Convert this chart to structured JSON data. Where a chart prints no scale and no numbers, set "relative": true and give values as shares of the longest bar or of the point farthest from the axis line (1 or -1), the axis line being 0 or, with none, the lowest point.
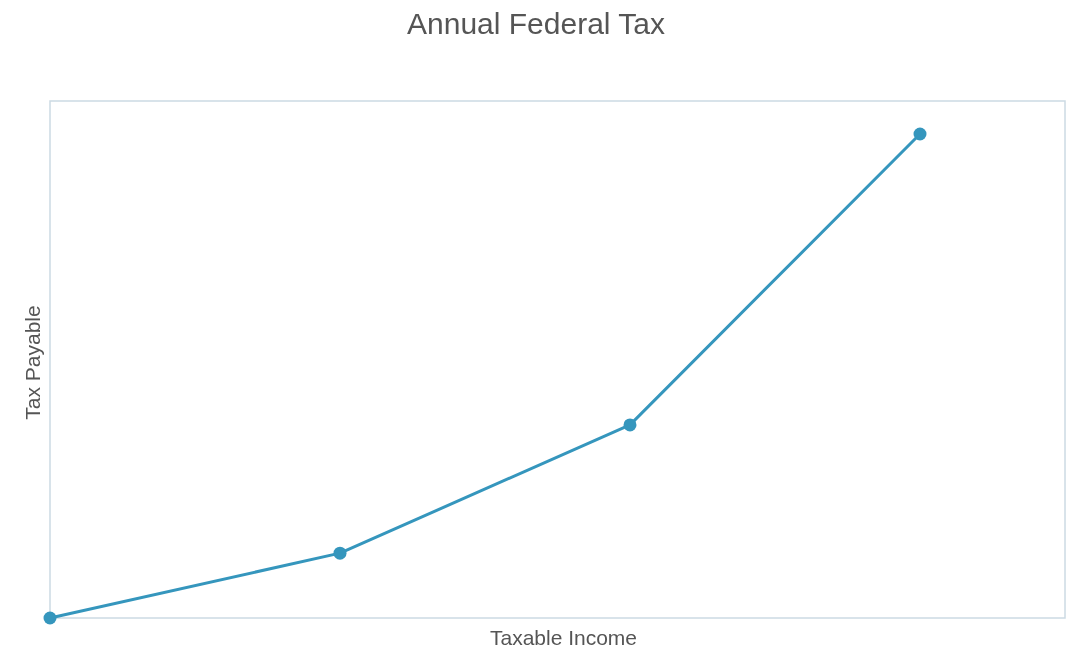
{
  "chart_data": {
    "type": "line",
    "title": "Annual Federal Tax",
    "xlabel": "Taxable Income",
    "ylabel": "Tax Payable",
    "relative": true,
    "categories": [
      null,
      null,
      null,
      null
    ],
    "series": [
      {
        "color": "#3596bd",
        "values": [
          0,
          0.134,
          0.399,
          1
        ]
      }
    ],
    "marker": "circle",
    "line_style": "solid"
  }
}
